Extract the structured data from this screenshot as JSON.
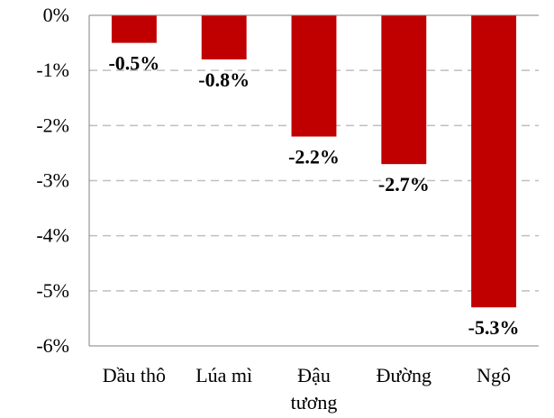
{
  "chart_data": {
    "type": "bar",
    "categories": [
      "Dầu thô",
      "Lúa mì",
      "Đậu tương",
      "Đường",
      "Ngô"
    ],
    "category_lines": [
      [
        "Dầu thô"
      ],
      [
        "Lúa mì"
      ],
      [
        "Đậu",
        "tương"
      ],
      [
        "Đường"
      ],
      [
        "Ngô"
      ]
    ],
    "values": [
      -0.5,
      -0.8,
      -2.2,
      -2.7,
      -5.3
    ],
    "data_labels": [
      "-0.5%",
      "-0.8%",
      "-2.2%",
      "-2.7%",
      "-5.3%"
    ],
    "ylim": [
      -6,
      0
    ],
    "yticks": [
      0,
      -1,
      -2,
      -3,
      -4,
      -5,
      -6
    ],
    "ytick_labels": [
      "0%",
      "-1%",
      "-2%",
      "-3%",
      "-4%",
      "-5%",
      "-6%"
    ],
    "grid": true,
    "bar_color": "#c00000",
    "grid_color": "#bfbfbf",
    "title": "",
    "xlabel": "",
    "ylabel": ""
  }
}
